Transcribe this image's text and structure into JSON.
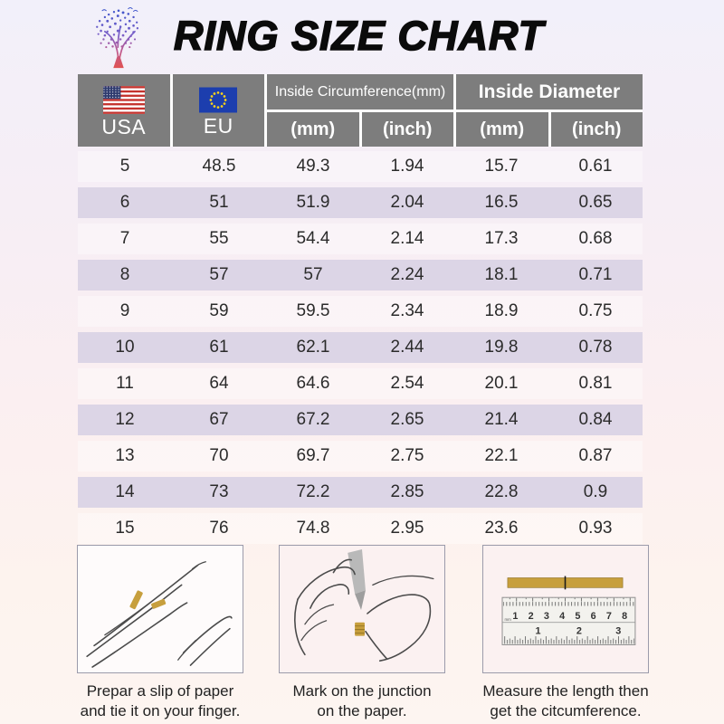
{
  "page": {
    "title": "RING SIZE CHART"
  },
  "colors": {
    "header_gray": "#7d7d7d",
    "row_alt_lavender": "#dcd5e6",
    "paper_gold": "#c79f3d",
    "eu_flag_blue": "#1c3eae",
    "eu_star_yellow": "#ffd617",
    "us_flag_red": "#c5332e",
    "us_canton_blue": "#2e3a6e",
    "logo_gradient_top": "#3b55cc",
    "logo_gradient_bottom": "#e05252"
  },
  "icons": {
    "logo": "tree-logo-icon",
    "usa_flag": "usa-flag-icon",
    "eu_flag": "eu-flag-icon"
  },
  "table": {
    "columns": {
      "usa": "USA",
      "eu": "EU",
      "circumference_group": "Inside Circumference(mm)",
      "diameter_group": "Inside Diameter",
      "sub": [
        "(mm)",
        "(inch)",
        "(mm)",
        "(inch)"
      ]
    },
    "rows": [
      [
        "5",
        "48.5",
        "49.3",
        "1.94",
        "15.7",
        "0.61"
      ],
      [
        "6",
        "51",
        "51.9",
        "2.04",
        "16.5",
        "0.65"
      ],
      [
        "7",
        "55",
        "54.4",
        "2.14",
        "17.3",
        "0.68"
      ],
      [
        "8",
        "57",
        "57",
        "2.24",
        "18.1",
        "0.71"
      ],
      [
        "9",
        "59",
        "59.5",
        "2.34",
        "18.9",
        "0.75"
      ],
      [
        "10",
        "61",
        "62.1",
        "2.44",
        "19.8",
        "0.78"
      ],
      [
        "11",
        "64",
        "64.6",
        "2.54",
        "20.1",
        "0.81"
      ],
      [
        "12",
        "67",
        "67.2",
        "2.65",
        "21.4",
        "0.84"
      ],
      [
        "13",
        "70",
        "69.7",
        "2.75",
        "22.1",
        "0.87"
      ],
      [
        "14",
        "73",
        "72.2",
        "2.85",
        "22.8",
        "0.9"
      ],
      [
        "15",
        "76",
        "74.8",
        "2.95",
        "23.6",
        "0.93"
      ]
    ]
  },
  "chart_data": {
    "type": "table",
    "title": "RING SIZE CHART",
    "columns": [
      "USA",
      "EU",
      "Inside Circumference (mm)",
      "Inside Circumference (inch)",
      "Inside Diameter (mm)",
      "Inside Diameter (inch)"
    ],
    "rows": [
      [
        5,
        48.5,
        49.3,
        1.94,
        15.7,
        0.61
      ],
      [
        6,
        51,
        51.9,
        2.04,
        16.5,
        0.65
      ],
      [
        7,
        55,
        54.4,
        2.14,
        17.3,
        0.68
      ],
      [
        8,
        57,
        57,
        2.24,
        18.1,
        0.71
      ],
      [
        9,
        59,
        59.5,
        2.34,
        18.9,
        0.75
      ],
      [
        10,
        61,
        62.1,
        2.44,
        19.8,
        0.78
      ],
      [
        11,
        64,
        64.6,
        2.54,
        20.1,
        0.81
      ],
      [
        12,
        67,
        67.2,
        2.65,
        21.4,
        0.84
      ],
      [
        13,
        70,
        69.7,
        2.75,
        22.1,
        0.87
      ],
      [
        14,
        73,
        72.2,
        2.85,
        22.8,
        0.9
      ],
      [
        15,
        76,
        74.8,
        2.95,
        23.6,
        0.93
      ]
    ]
  },
  "instructions": [
    {
      "line1": "Prepar a slip of paper",
      "line2": "and tie it on your finger."
    },
    {
      "line1": "Mark on the junction",
      "line2": "on the paper."
    },
    {
      "line1": "Measure the length then",
      "line2": "get the citcumference."
    }
  ],
  "ruler": {
    "unit": "mm",
    "cm": [
      "1",
      "2",
      "3",
      "4",
      "5",
      "6",
      "7",
      "8"
    ],
    "inch": [
      "1",
      "2",
      "3"
    ]
  }
}
